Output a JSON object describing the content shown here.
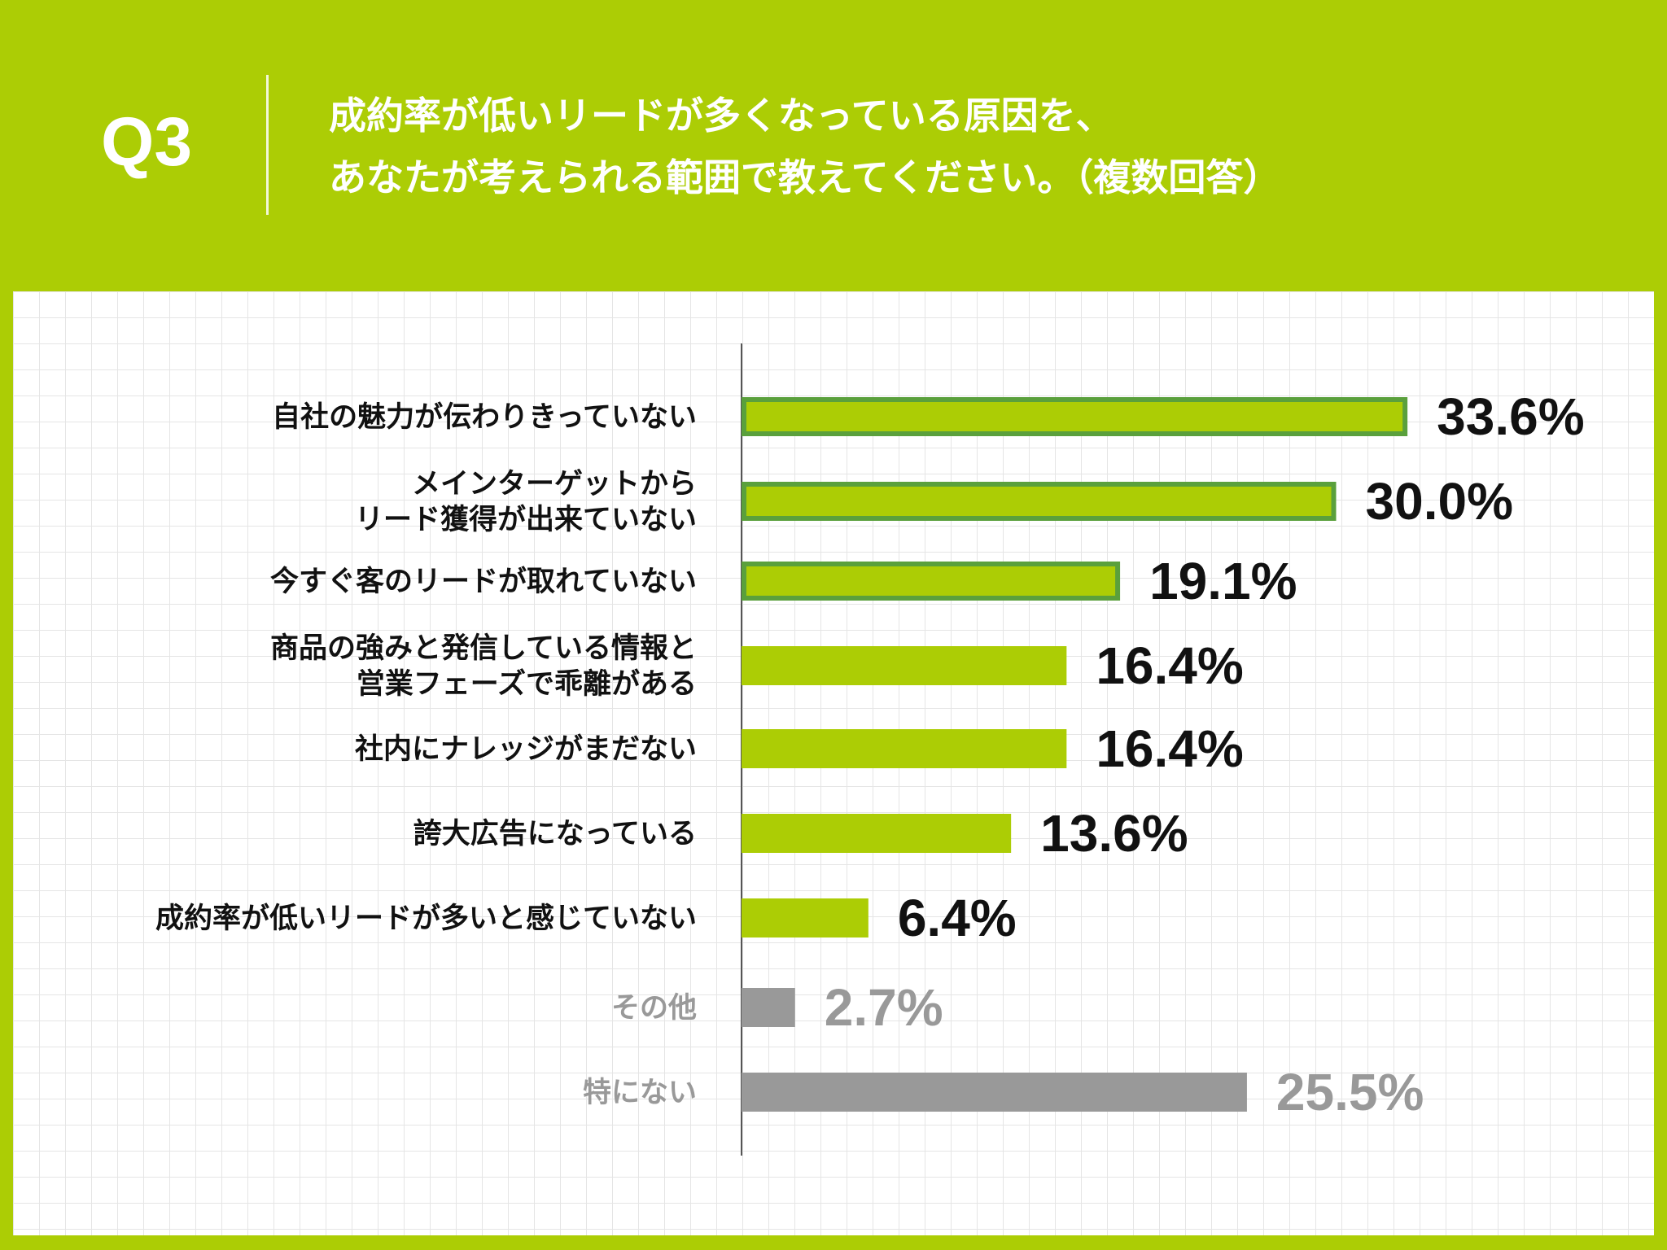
{
  "header": {
    "question_number": "Q3",
    "question_line1": "成約率が低いリードが多くなっている原因を、",
    "question_line2": "あなたが考えられる範囲で教えてください。（複数回答）"
  },
  "colors": {
    "background": "#accd05",
    "bar_main": "#accd05",
    "bar_outline": "#5aa03c",
    "bar_other": "#999999",
    "text_main": "#111111",
    "text_other": "#999999"
  },
  "chart_data": {
    "type": "bar",
    "orientation": "horizontal",
    "title": "",
    "xlabel": "",
    "ylabel": "",
    "xlim": [
      0,
      35
    ],
    "grid": true,
    "unit": "%",
    "categories": [
      "自社の魅力が伝わりきっていない",
      "メインターゲットから\nリード獲得が出来ていない",
      "今すぐ客のリードが取れていない",
      "商品の強みと発信している情報と\n営業フェーズで乖離がある",
      "社内にナレッジがまだない",
      "誇大広告になっている",
      "成約率が低いリードが多いと感じていない",
      "その他",
      "特にない"
    ],
    "values": [
      33.6,
      30.0,
      19.1,
      16.4,
      16.4,
      13.6,
      6.4,
      2.7,
      25.5
    ],
    "value_labels": [
      "33.6%",
      "30.0%",
      "19.1%",
      "16.4%",
      "16.4%",
      "13.6%",
      "6.4%",
      "2.7%",
      "25.5%"
    ],
    "highlighted": [
      true,
      true,
      true,
      false,
      false,
      false,
      false,
      false,
      false
    ],
    "muted": [
      false,
      false,
      false,
      false,
      false,
      false,
      false,
      true,
      true
    ]
  }
}
